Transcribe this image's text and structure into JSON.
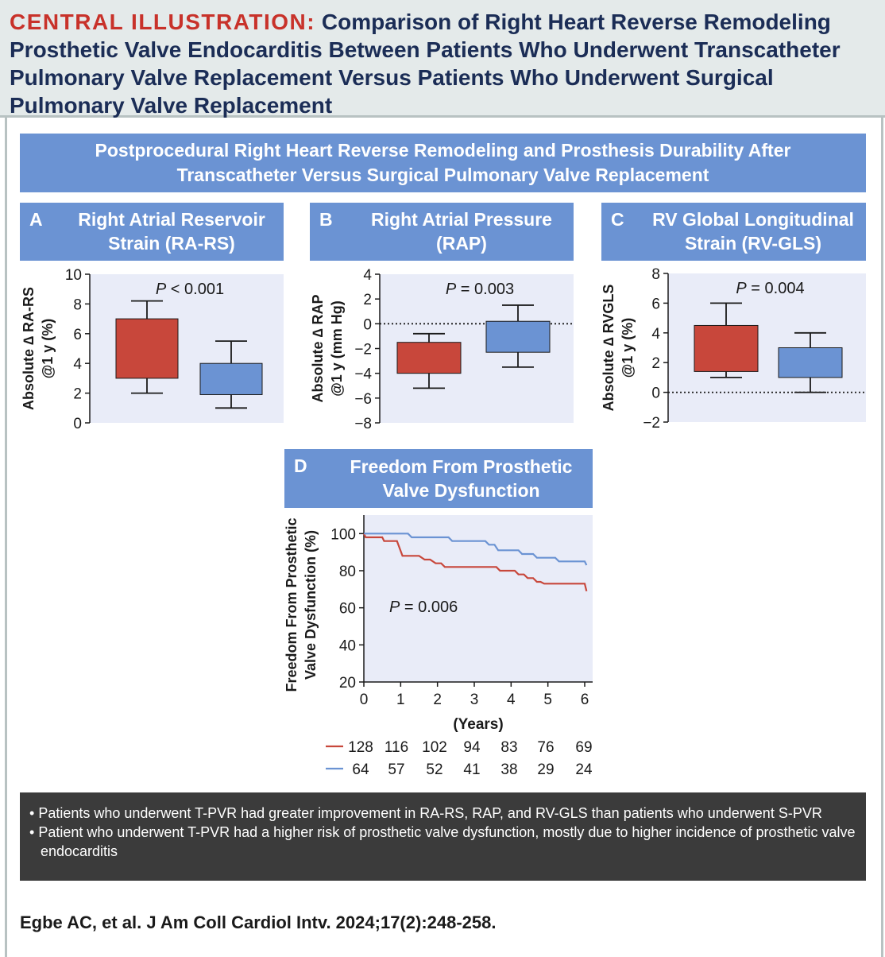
{
  "header": {
    "label": "CENTRAL ILLUSTRATION:",
    "title": "Comparison of Right Heart Reverse Remodeling Prosthetic Valve Endocarditis Between Patients Who Underwent Transcatheter Pulmonary Valve Replacement Versus Patients Who Underwent Surgical Pulmonary Valve Replacement"
  },
  "main_banner": "Postprocedural Right Heart Reverse Remodeling and Prosthesis Durability After Transcatheter Versus Surgical Pulmonary Valve Replacement",
  "panels": {
    "a": {
      "letter": "A",
      "title": "Right Atrial Reservoir Strain (RA-RS)"
    },
    "b": {
      "letter": "B",
      "title": "Right Atrial Pressure (RAP)"
    },
    "c": {
      "letter": "C",
      "title": "RV Global Longitudinal Strain (RV-GLS)"
    },
    "d": {
      "letter": "D",
      "title": "Freedom From Prosthetic Valve Dysfunction"
    }
  },
  "colors": {
    "tpvr": "#c8473b",
    "spvr": "#6b93d3",
    "plot_bg": "#e9ecf8",
    "banner": "#6b93d3"
  },
  "chart_data": [
    {
      "type": "box",
      "panel": "A",
      "ylabel": "Absolute ∆ RA-RS @1 y (%)",
      "ylim": [
        0,
        10
      ],
      "yticks": [
        0,
        2,
        4,
        6,
        8,
        10
      ],
      "pvalue_prefix": "P",
      "pvalue_rest": " < 0.001",
      "baseline": null,
      "series": [
        {
          "color": "#c8473b",
          "min": 2,
          "q1": 3,
          "q3": 7,
          "max": 8.2
        },
        {
          "color": "#6b93d3",
          "min": 1,
          "q1": 1.9,
          "q3": 4,
          "max": 5.5
        }
      ]
    },
    {
      "type": "box",
      "panel": "B",
      "ylabel": "Absolute ∆ RAP @1 y (mm Hg)",
      "ylim": [
        -8,
        4
      ],
      "yticks": [
        -8,
        -6,
        -4,
        -2,
        0,
        2,
        4
      ],
      "pvalue_prefix": "P",
      "pvalue_rest": " = 0.003",
      "baseline": 0,
      "series": [
        {
          "color": "#c8473b",
          "min": -5.2,
          "q1": -4,
          "q3": -1.5,
          "max": -0.8
        },
        {
          "color": "#6b93d3",
          "min": -3.5,
          "q1": -2.3,
          "q3": 0.2,
          "max": 1.5
        }
      ]
    },
    {
      "type": "box",
      "panel": "C",
      "ylabel": "Absolute ∆ RVGLS @1 y (%)",
      "ylim": [
        -2,
        8
      ],
      "yticks": [
        -2,
        0,
        2,
        4,
        6,
        8
      ],
      "pvalue_prefix": "P",
      "pvalue_rest": " = 0.004",
      "baseline": 0,
      "series": [
        {
          "color": "#c8473b",
          "min": 1,
          "q1": 1.4,
          "q3": 4.5,
          "max": 6
        },
        {
          "color": "#6b93d3",
          "min": 0,
          "q1": 1,
          "q3": 3,
          "max": 4
        }
      ]
    },
    {
      "type": "line",
      "panel": "D",
      "ylabel_1": "Freedom From Prosthetic",
      "ylabel_2": "Valve Dysfunction (%)",
      "xlabel": "(Years)",
      "xlim": [
        0,
        6
      ],
      "ylim": [
        20,
        110
      ],
      "xticks": [
        0,
        1,
        2,
        3,
        4,
        5,
        6
      ],
      "yticks": [
        20,
        40,
        60,
        80,
        100
      ],
      "pvalue_prefix": "P",
      "pvalue_rest": " = 0.006",
      "series": [
        {
          "color": "#c8473b",
          "at_risk": [
            "128",
            "116",
            "102",
            "94",
            "83",
            "76",
            "69"
          ],
          "points": [
            [
              0,
              100
            ],
            [
              0.05,
              98
            ],
            [
              0.5,
              98
            ],
            [
              0.55,
              96
            ],
            [
              0.9,
              96
            ],
            [
              1.05,
              88
            ],
            [
              1.5,
              88
            ],
            [
              1.65,
              86
            ],
            [
              1.8,
              86
            ],
            [
              1.95,
              84
            ],
            [
              2.1,
              84
            ],
            [
              2.2,
              82
            ],
            [
              3.6,
              82
            ],
            [
              3.7,
              80
            ],
            [
              4.1,
              80
            ],
            [
              4.2,
              78
            ],
            [
              4.35,
              78
            ],
            [
              4.45,
              76
            ],
            [
              4.6,
              76
            ],
            [
              4.7,
              74
            ],
            [
              4.8,
              74
            ],
            [
              4.9,
              73
            ],
            [
              6.0,
              73
            ],
            [
              6.05,
              69
            ]
          ]
        },
        {
          "color": "#6b93d3",
          "at_risk": [
            "64",
            "57",
            "52",
            "41",
            "38",
            "29",
            "24"
          ],
          "points": [
            [
              0,
              100
            ],
            [
              1.2,
              100
            ],
            [
              1.3,
              98
            ],
            [
              2.3,
              98
            ],
            [
              2.4,
              96
            ],
            [
              3.3,
              96
            ],
            [
              3.4,
              94
            ],
            [
              3.55,
              94
            ],
            [
              3.65,
              91
            ],
            [
              4.2,
              91
            ],
            [
              4.3,
              89
            ],
            [
              4.6,
              89
            ],
            [
              4.7,
              87
            ],
            [
              5.2,
              87
            ],
            [
              5.3,
              85
            ],
            [
              6.0,
              85
            ],
            [
              6.05,
              83
            ]
          ]
        }
      ]
    }
  ],
  "summary": [
    "Patients who underwent T-PVR had greater improvement in RA-RS, RAP, and RV-GLS than patients who underwent S-PVR",
    "Patient who underwent T-PVR had a higher risk of prosthetic valve dysfunction, mostly due to higher incidence of prosthetic valve endocarditis"
  ],
  "citation": "Egbe AC, et al. J Am Coll Cardiol Intv. 2024;17(2):248-258."
}
